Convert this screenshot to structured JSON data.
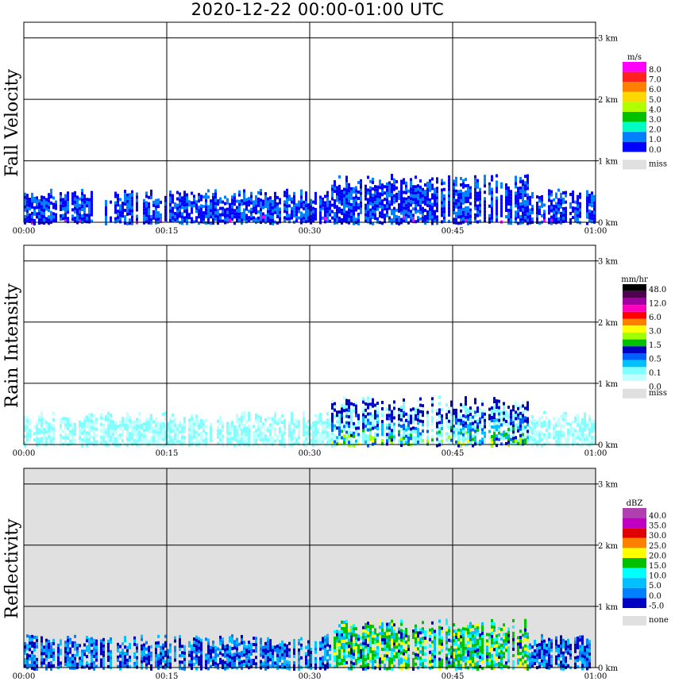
{
  "title": "2020-12-22   00:00-01:00 UTC",
  "chart_data": [
    {
      "type": "heatmap",
      "title": "Fall Velocity",
      "xlabel": "",
      "ylabel": "",
      "x_ticks": [
        "00:00",
        "00:15",
        "00:30",
        "00:45",
        "01:00"
      ],
      "y_ticks": [
        "0 km",
        "1 km",
        "2 km",
        "3 km"
      ],
      "ylim": [
        0,
        3.1
      ],
      "xlim_minutes": [
        0,
        60
      ],
      "background": "#ffffff",
      "legend": {
        "unit": "m/s",
        "labels": [
          "8.0",
          "7.0",
          "6.0",
          "5.0",
          "4.0",
          "3.0",
          "2.0",
          "1.0",
          "0.0"
        ],
        "colors": [
          "#ff00ff",
          "#ff2020",
          "#ff8000",
          "#ffd700",
          "#b0ff00",
          "#00c000",
          "#00ffc0",
          "#0080ff",
          "#0000ff"
        ],
        "missing_label": "miss",
        "missing_color": "#e0e0e0"
      }
    },
    {
      "type": "heatmap",
      "title": "Rain Intensity",
      "xlabel": "",
      "ylabel": "",
      "x_ticks": [
        "00:00",
        "00:15",
        "00:30",
        "00:45",
        "01:00"
      ],
      "y_ticks": [
        "0 km",
        "1 km",
        "2 km",
        "3 km"
      ],
      "ylim": [
        0,
        3.1
      ],
      "xlim_minutes": [
        0,
        60
      ],
      "background": "#ffffff",
      "legend": {
        "unit": "mm/hr",
        "labels": [
          "48.0",
          "12.0",
          "6.0",
          "3.0",
          "1.5",
          "0.5",
          "0.1",
          "0.0"
        ],
        "colors": [
          "#000000",
          "#500050",
          "#a000a0",
          "#ff00c0",
          "#ff0000",
          "#ff8000",
          "#ffff00",
          "#a0ff00",
          "#00c000",
          "#0000c0",
          "#0060ff",
          "#00c0ff",
          "#80ffff",
          "#c0ffff"
        ],
        "missing_label": "miss",
        "missing_color": "#e0e0e0"
      }
    },
    {
      "type": "heatmap",
      "title": "Reflectivity",
      "xlabel": "",
      "ylabel": "",
      "x_ticks": [
        "00:00",
        "00:15",
        "00:30",
        "00:45",
        "01:00"
      ],
      "y_ticks": [
        "0 km",
        "1 km",
        "2 km",
        "3 km"
      ],
      "ylim": [
        0,
        3.1
      ],
      "xlim_minutes": [
        0,
        60
      ],
      "background": "#e0e0e0",
      "legend": {
        "unit": "dBZ",
        "labels": [
          "40.0",
          "35.0",
          "30.0",
          "25.0",
          "20.0",
          "15.0",
          "10.0",
          "5.0",
          "0.0",
          "-5.0"
        ],
        "colors": [
          "#b040b0",
          "#c000c0",
          "#e00000",
          "#ff8000",
          "#ffff00",
          "#00c000",
          "#00ffff",
          "#00c0ff",
          "#0080ff",
          "#0000c0"
        ],
        "missing_label": "none",
        "missing_color": "#e0e0e0"
      }
    }
  ]
}
